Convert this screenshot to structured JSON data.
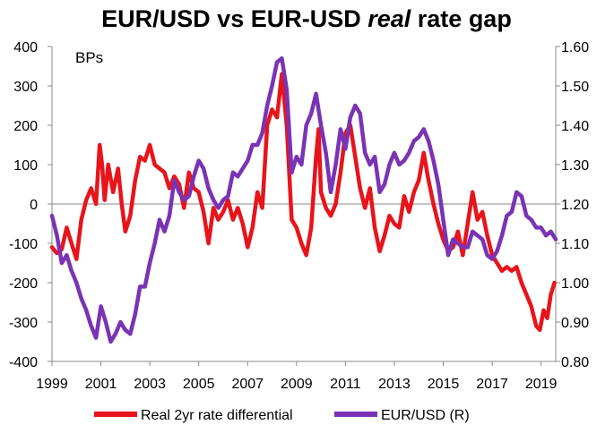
{
  "chart_data": {
    "type": "line",
    "title_parts": [
      "EUR/USD vs EUR-USD ",
      "real",
      " rate gap"
    ],
    "unit_label": "BPs",
    "x": {
      "min": 1999,
      "max": 2019.6,
      "tick_values": [
        1999,
        2001,
        2003,
        2005,
        2007,
        2009,
        2011,
        2013,
        2015,
        2017,
        2019
      ],
      "tick_labels": [
        "1999",
        "2001",
        "2003",
        "2005",
        "2007",
        "2009",
        "2011",
        "2013",
        "2015",
        "2017",
        "2019"
      ]
    },
    "y_left": {
      "min": -400,
      "max": 400,
      "tick_values": [
        400,
        300,
        200,
        100,
        0,
        -100,
        -200,
        -300,
        -400
      ],
      "tick_labels": [
        "400",
        "300",
        "200",
        "100",
        "0",
        "-100",
        "-200",
        "-300",
        "-400"
      ]
    },
    "y_right": {
      "min": 0.8,
      "max": 1.6,
      "tick_values": [
        1.6,
        1.5,
        1.4,
        1.3,
        1.2,
        1.1,
        1.0,
        0.9,
        0.8
      ],
      "tick_labels": [
        "1.60",
        "1.50",
        "1.40",
        "1.30",
        "1.20",
        "1.10",
        "1.00",
        "0.90",
        "0.80"
      ]
    },
    "series": [
      {
        "name": "Real 2yr rate differential",
        "axis": "left",
        "color": "#e8141b",
        "points": [
          [
            1999.0,
            -110
          ],
          [
            1999.2,
            -125
          ],
          [
            1999.4,
            -115
          ],
          [
            1999.6,
            -60
          ],
          [
            1999.8,
            -100
          ],
          [
            2000.0,
            -140
          ],
          [
            2000.2,
            -40
          ],
          [
            2000.4,
            10
          ],
          [
            2000.6,
            40
          ],
          [
            2000.8,
            0
          ],
          [
            2000.95,
            150
          ],
          [
            2001.05,
            100
          ],
          [
            2001.15,
            10
          ],
          [
            2001.3,
            100
          ],
          [
            2001.5,
            30
          ],
          [
            2001.7,
            90
          ],
          [
            2001.85,
            0
          ],
          [
            2002.0,
            -70
          ],
          [
            2002.2,
            -30
          ],
          [
            2002.4,
            60
          ],
          [
            2002.6,
            120
          ],
          [
            2002.8,
            110
          ],
          [
            2003.0,
            150
          ],
          [
            2003.2,
            100
          ],
          [
            2003.4,
            90
          ],
          [
            2003.6,
            80
          ],
          [
            2003.8,
            40
          ],
          [
            2004.0,
            70
          ],
          [
            2004.2,
            50
          ],
          [
            2004.4,
            -10
          ],
          [
            2004.6,
            80
          ],
          [
            2004.8,
            40
          ],
          [
            2005.0,
            30
          ],
          [
            2005.2,
            -20
          ],
          [
            2005.4,
            -100
          ],
          [
            2005.6,
            -10
          ],
          [
            2005.8,
            -40
          ],
          [
            2006.0,
            -20
          ],
          [
            2006.2,
            10
          ],
          [
            2006.4,
            -40
          ],
          [
            2006.6,
            -10
          ],
          [
            2006.8,
            -50
          ],
          [
            2007.0,
            -110
          ],
          [
            2007.2,
            -60
          ],
          [
            2007.4,
            30
          ],
          [
            2007.6,
            -10
          ],
          [
            2007.8,
            200
          ],
          [
            2008.0,
            240
          ],
          [
            2008.2,
            220
          ],
          [
            2008.4,
            330
          ],
          [
            2008.6,
            200
          ],
          [
            2008.8,
            -40
          ],
          [
            2009.0,
            -60
          ],
          [
            2009.2,
            -100
          ],
          [
            2009.4,
            -130
          ],
          [
            2009.6,
            -60
          ],
          [
            2009.8,
            120
          ],
          [
            2009.9,
            190
          ],
          [
            2010.0,
            30
          ],
          [
            2010.2,
            -10
          ],
          [
            2010.4,
            -30
          ],
          [
            2010.6,
            0
          ],
          [
            2010.8,
            80
          ],
          [
            2011.0,
            180
          ],
          [
            2011.2,
            200
          ],
          [
            2011.4,
            120
          ],
          [
            2011.6,
            40
          ],
          [
            2011.8,
            -10
          ],
          [
            2012.0,
            40
          ],
          [
            2012.2,
            -60
          ],
          [
            2012.4,
            -120
          ],
          [
            2012.6,
            -80
          ],
          [
            2012.8,
            -30
          ],
          [
            2013.0,
            -50
          ],
          [
            2013.2,
            -60
          ],
          [
            2013.4,
            20
          ],
          [
            2013.6,
            -20
          ],
          [
            2013.8,
            30
          ],
          [
            2014.0,
            60
          ],
          [
            2014.2,
            130
          ],
          [
            2014.4,
            60
          ],
          [
            2014.6,
            0
          ],
          [
            2014.8,
            -50
          ],
          [
            2015.0,
            -90
          ],
          [
            2015.2,
            -120
          ],
          [
            2015.4,
            -110
          ],
          [
            2015.6,
            -70
          ],
          [
            2015.8,
            -130
          ],
          [
            2016.0,
            -50
          ],
          [
            2016.2,
            30
          ],
          [
            2016.4,
            -40
          ],
          [
            2016.6,
            -20
          ],
          [
            2016.8,
            -80
          ],
          [
            2017.0,
            -130
          ],
          [
            2017.2,
            -150
          ],
          [
            2017.4,
            -170
          ],
          [
            2017.6,
            -160
          ],
          [
            2017.8,
            -170
          ],
          [
            2018.0,
            -160
          ],
          [
            2018.2,
            -200
          ],
          [
            2018.4,
            -230
          ],
          [
            2018.6,
            -260
          ],
          [
            2018.8,
            -310
          ],
          [
            2018.95,
            -320
          ],
          [
            2019.1,
            -270
          ],
          [
            2019.25,
            -290
          ],
          [
            2019.4,
            -230
          ],
          [
            2019.55,
            -200
          ]
        ]
      },
      {
        "name": "EUR/USD (R)",
        "axis": "right",
        "color": "#7a33b5",
        "points": [
          [
            1999.0,
            1.17
          ],
          [
            1999.2,
            1.12
          ],
          [
            1999.4,
            1.05
          ],
          [
            1999.6,
            1.07
          ],
          [
            1999.8,
            1.03
          ],
          [
            2000.0,
            1.0
          ],
          [
            2000.2,
            0.96
          ],
          [
            2000.4,
            0.93
          ],
          [
            2000.6,
            0.89
          ],
          [
            2000.8,
            0.86
          ],
          [
            2001.0,
            0.94
          ],
          [
            2001.2,
            0.9
          ],
          [
            2001.4,
            0.85
          ],
          [
            2001.6,
            0.87
          ],
          [
            2001.8,
            0.9
          ],
          [
            2002.0,
            0.88
          ],
          [
            2002.2,
            0.87
          ],
          [
            2002.4,
            0.92
          ],
          [
            2002.6,
            0.99
          ],
          [
            2002.8,
            0.99
          ],
          [
            2003.0,
            1.05
          ],
          [
            2003.2,
            1.1
          ],
          [
            2003.4,
            1.16
          ],
          [
            2003.6,
            1.13
          ],
          [
            2003.8,
            1.17
          ],
          [
            2004.0,
            1.26
          ],
          [
            2004.2,
            1.23
          ],
          [
            2004.4,
            1.21
          ],
          [
            2004.6,
            1.22
          ],
          [
            2004.8,
            1.27
          ],
          [
            2005.0,
            1.31
          ],
          [
            2005.2,
            1.29
          ],
          [
            2005.4,
            1.24
          ],
          [
            2005.6,
            1.21
          ],
          [
            2005.8,
            1.19
          ],
          [
            2006.0,
            1.21
          ],
          [
            2006.2,
            1.22
          ],
          [
            2006.4,
            1.28
          ],
          [
            2006.6,
            1.27
          ],
          [
            2006.8,
            1.29
          ],
          [
            2007.0,
            1.31
          ],
          [
            2007.2,
            1.35
          ],
          [
            2007.4,
            1.35
          ],
          [
            2007.6,
            1.38
          ],
          [
            2007.8,
            1.45
          ],
          [
            2008.0,
            1.5
          ],
          [
            2008.2,
            1.56
          ],
          [
            2008.4,
            1.57
          ],
          [
            2008.6,
            1.49
          ],
          [
            2008.8,
            1.28
          ],
          [
            2009.0,
            1.32
          ],
          [
            2009.2,
            1.3
          ],
          [
            2009.4,
            1.4
          ],
          [
            2009.6,
            1.43
          ],
          [
            2009.8,
            1.48
          ],
          [
            2010.0,
            1.4
          ],
          [
            2010.2,
            1.33
          ],
          [
            2010.4,
            1.23
          ],
          [
            2010.6,
            1.3
          ],
          [
            2010.8,
            1.39
          ],
          [
            2011.0,
            1.34
          ],
          [
            2011.2,
            1.42
          ],
          [
            2011.4,
            1.45
          ],
          [
            2011.6,
            1.43
          ],
          [
            2011.8,
            1.33
          ],
          [
            2012.0,
            1.3
          ],
          [
            2012.2,
            1.32
          ],
          [
            2012.4,
            1.23
          ],
          [
            2012.6,
            1.25
          ],
          [
            2012.8,
            1.3
          ],
          [
            2013.0,
            1.33
          ],
          [
            2013.2,
            1.3
          ],
          [
            2013.4,
            1.31
          ],
          [
            2013.6,
            1.33
          ],
          [
            2013.8,
            1.36
          ],
          [
            2014.0,
            1.37
          ],
          [
            2014.2,
            1.39
          ],
          [
            2014.4,
            1.36
          ],
          [
            2014.6,
            1.31
          ],
          [
            2014.8,
            1.25
          ],
          [
            2015.0,
            1.16
          ],
          [
            2015.2,
            1.07
          ],
          [
            2015.4,
            1.11
          ],
          [
            2015.6,
            1.1
          ],
          [
            2015.8,
            1.09
          ],
          [
            2016.0,
            1.09
          ],
          [
            2016.2,
            1.13
          ],
          [
            2016.4,
            1.12
          ],
          [
            2016.6,
            1.11
          ],
          [
            2016.8,
            1.07
          ],
          [
            2017.0,
            1.06
          ],
          [
            2017.2,
            1.08
          ],
          [
            2017.4,
            1.12
          ],
          [
            2017.6,
            1.17
          ],
          [
            2017.8,
            1.18
          ],
          [
            2018.0,
            1.23
          ],
          [
            2018.2,
            1.22
          ],
          [
            2018.4,
            1.17
          ],
          [
            2018.6,
            1.16
          ],
          [
            2018.8,
            1.14
          ],
          [
            2019.0,
            1.14
          ],
          [
            2019.2,
            1.12
          ],
          [
            2019.4,
            1.13
          ],
          [
            2019.6,
            1.11
          ]
        ]
      }
    ],
    "legend": [
      "Real 2yr rate differential",
      "EUR/USD (R)"
    ],
    "zero_line": true,
    "grid": false
  }
}
